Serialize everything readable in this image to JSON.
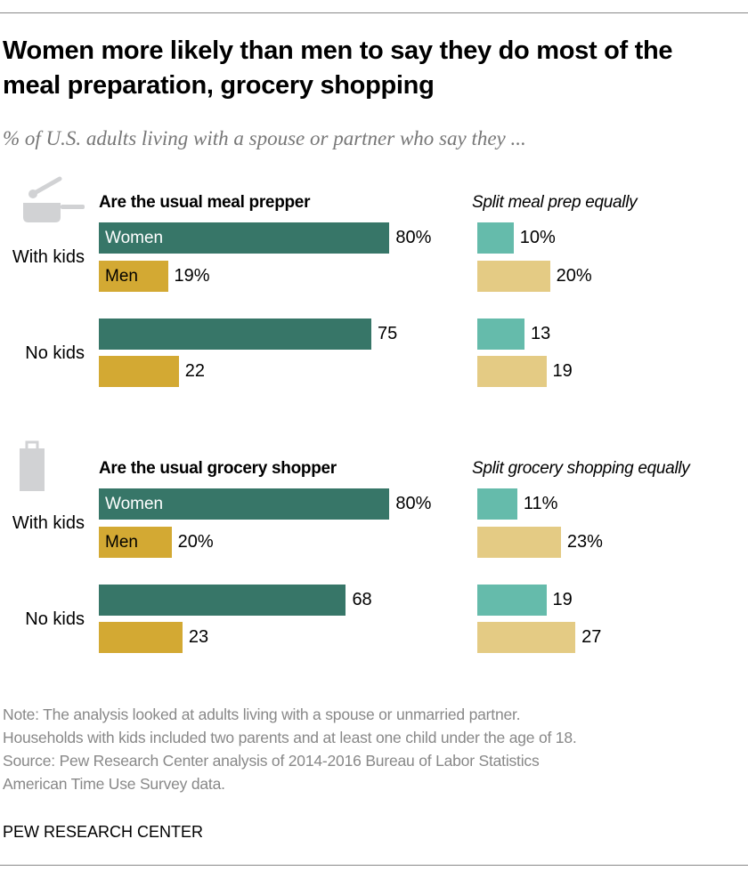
{
  "title": "Women more likely than men to say they do most of the meal preparation, grocery shopping",
  "subtitle": "% of U.S. adults living with a spouse or partner who say they ...",
  "notes": [
    "Note: The analysis looked at adults living with a spouse or unmarried partner.",
    "Households with kids included two parents and at least one child under the age of 18.",
    "Source: Pew Research Center analysis of 2014-2016 Bureau of Labor Statistics",
    "American Time Use Survey data."
  ],
  "brand": "PEW RESEARCH CENTER",
  "colors": {
    "women": "#377668",
    "men": "#d3a933",
    "women_split": "#65bbab",
    "men_split": "#e4cb84"
  },
  "chart_data": {
    "type": "bar",
    "orientation": "horizontal",
    "unit": "%",
    "series_labels": {
      "women": "Women",
      "men": "Men"
    },
    "panels": [
      {
        "icon": "saucepan-icon",
        "left_title": "Are the usual meal prepper",
        "right_title": "Split meal prep equally",
        "groups": [
          {
            "label": "With kids",
            "usual": {
              "women": 80,
              "men": 19
            },
            "split": {
              "women": 10,
              "men": 20
            },
            "value_labels": {
              "usual_women": "80%",
              "usual_men": "19%",
              "split_women": "10%",
              "split_men": "20%"
            }
          },
          {
            "label": "No kids",
            "usual": {
              "women": 75,
              "men": 22
            },
            "split": {
              "women": 13,
              "men": 19
            },
            "value_labels": {
              "usual_women": "75",
              "usual_men": "22",
              "split_women": "13",
              "split_men": "19"
            }
          }
        ]
      },
      {
        "icon": "shopping-bag-icon",
        "left_title": "Are the usual grocery shopper",
        "right_title": "Split grocery shopping equally",
        "groups": [
          {
            "label": "With kids",
            "usual": {
              "women": 80,
              "men": 20
            },
            "split": {
              "women": 11,
              "men": 23
            },
            "value_labels": {
              "usual_women": "80%",
              "usual_men": "20%",
              "split_women": "11%",
              "split_men": "23%"
            }
          },
          {
            "label": "No kids",
            "usual": {
              "women": 68,
              "men": 23
            },
            "split": {
              "women": 19,
              "men": 27
            },
            "value_labels": {
              "usual_women": "68",
              "usual_men": "23",
              "split_women": "19",
              "split_men": "27"
            }
          }
        ]
      }
    ]
  }
}
